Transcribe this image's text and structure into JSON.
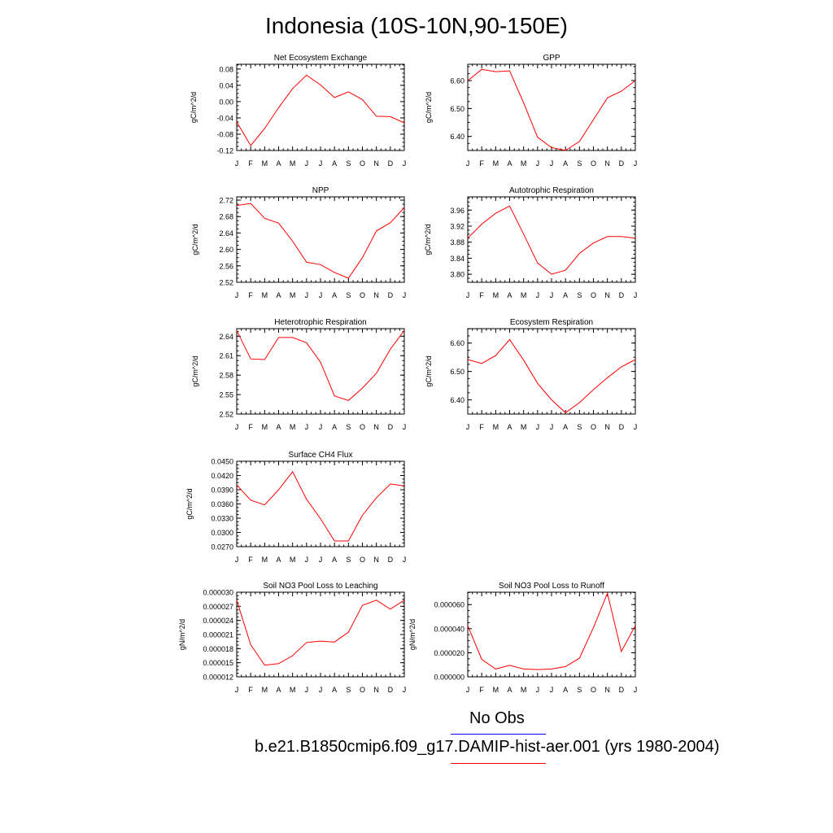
{
  "title": "Indonesia (10S-10N,90-150E)",
  "colors": {
    "model_line": "#ff0000",
    "obs_line": "#0000ff",
    "axis": "#000000"
  },
  "months": [
    "J",
    "F",
    "M",
    "A",
    "M",
    "J",
    "J",
    "A",
    "S",
    "O",
    "N",
    "D",
    "J"
  ],
  "legend": {
    "obs_label": "No Obs",
    "model_label": "b.e21.B1850cmip6.f09_g17.DAMIP-hist-aer.001 (yrs 1980-2004)"
  },
  "chart_data": [
    {
      "type": "line",
      "title": "Net Ecosystem Exchange",
      "ylabel": "gC/m^2/d",
      "ylim": [
        -0.12,
        0.0917
      ],
      "yticks": [
        -0.12,
        -0.08,
        -0.04,
        0.0,
        0.04,
        0.08
      ],
      "yticklabels": [
        "-0.12",
        "-0.08",
        "-0.04",
        "0.00",
        "0.04",
        "0.08"
      ],
      "values": [
        -0.05,
        -0.108,
        -0.066,
        -0.015,
        0.032,
        0.065,
        0.041,
        0.01,
        0.024,
        0.005,
        -0.036,
        -0.037,
        -0.052
      ]
    },
    {
      "type": "line",
      "title": "GPP",
      "ylabel": "gC/m^2/d",
      "ylim": [
        6.3496,
        6.6585
      ],
      "yticks": [
        6.4,
        6.5,
        6.6
      ],
      "yticklabels": [
        "6.40",
        "6.50",
        "6.60"
      ],
      "values": [
        6.6,
        6.64,
        6.632,
        6.635,
        6.52,
        6.397,
        6.36,
        6.35,
        6.382,
        6.46,
        6.538,
        6.562,
        6.6
      ]
    },
    {
      "type": "line",
      "title": "NPP",
      "ylabel": "gC/m^2/d",
      "ylim": [
        2.52,
        2.728
      ],
      "yticks": [
        2.52,
        2.56,
        2.6,
        2.64,
        2.68,
        2.72
      ],
      "yticklabels": [
        "2.52",
        "2.56",
        "2.60",
        "2.64",
        "2.68",
        "2.72"
      ],
      "values": [
        2.707,
        2.712,
        2.676,
        2.664,
        2.62,
        2.569,
        2.563,
        2.544,
        2.53,
        2.58,
        2.645,
        2.665,
        2.702
      ]
    },
    {
      "type": "line",
      "title": "Autotrophic Respiration",
      "ylabel": "gC/m^2/d",
      "ylim": [
        3.78,
        3.993
      ],
      "yticks": [
        3.8,
        3.84,
        3.88,
        3.92,
        3.96
      ],
      "yticklabels": [
        "3.80",
        "3.84",
        "3.88",
        "3.92",
        "3.96"
      ],
      "values": [
        3.89,
        3.925,
        3.952,
        3.97,
        3.9,
        3.828,
        3.8,
        3.81,
        3.852,
        3.878,
        3.894,
        3.894,
        3.89
      ]
    },
    {
      "type": "line",
      "title": "Heterotrophic Respiration",
      "ylabel": "gC/m^2/d",
      "ylim": [
        2.52,
        2.6517
      ],
      "yticks": [
        2.52,
        2.55,
        2.58,
        2.61,
        2.64
      ],
      "yticklabels": [
        "2.52",
        "2.55",
        "2.58",
        "2.61",
        "2.64"
      ],
      "values": [
        2.649,
        2.605,
        2.604,
        2.638,
        2.638,
        2.63,
        2.6,
        2.548,
        2.541,
        2.56,
        2.583,
        2.62,
        2.649
      ]
    },
    {
      "type": "line",
      "title": "Ecosystem Respiration",
      "ylabel": "gC/m^2/d",
      "ylim": [
        6.35,
        6.6507
      ],
      "yticks": [
        6.4,
        6.5,
        6.6
      ],
      "yticklabels": [
        "6.40",
        "6.50",
        "6.60"
      ],
      "values": [
        6.542,
        6.528,
        6.556,
        6.612,
        6.54,
        6.458,
        6.4,
        6.355,
        6.39,
        6.436,
        6.478,
        6.516,
        6.542
      ]
    },
    {
      "type": "line",
      "title": "Surface CH4 Flux",
      "ylabel": "gC/m^2/d",
      "ylim": [
        0.027,
        0.045
      ],
      "yticks": [
        0.027,
        0.03,
        0.033,
        0.036,
        0.039,
        0.042,
        0.045
      ],
      "yticklabels": [
        "0.0270",
        "0.0300",
        "0.0330",
        "0.0360",
        "0.0390",
        "0.0420",
        "0.0450"
      ],
      "values": [
        0.04,
        0.0368,
        0.0358,
        0.039,
        0.0428,
        0.037,
        0.0329,
        0.0282,
        0.0282,
        0.0336,
        0.0373,
        0.0402,
        0.0398
      ]
    },
    {
      "type": "line",
      "title": "Soil NO3 Pool Loss to Leaching",
      "ylabel": "gN/m^2/d",
      "ylim": [
        1.2e-05,
        3e-05
      ],
      "yticks": [
        1.2e-05,
        1.5e-05,
        1.8e-05,
        2.1e-05,
        2.4e-05,
        2.7e-05,
        3e-05
      ],
      "yticklabels": [
        "0.000012",
        "0.000015",
        "0.000018",
        "0.000021",
        "0.000024",
        "0.000027",
        "0.000030"
      ],
      "values": [
        2.83e-05,
        1.88e-05,
        1.45e-05,
        1.48e-05,
        1.65e-05,
        1.93e-05,
        1.96e-05,
        1.94e-05,
        2.15e-05,
        2.72e-05,
        2.83e-05,
        2.64e-05,
        2.83e-05
      ]
    },
    {
      "type": "line",
      "title": "Soil NO3 Pool Loss to Runoff",
      "ylabel": "gN/m^2/d",
      "ylim": [
        0.0,
        7.03e-05
      ],
      "yticks": [
        0.0,
        2e-05,
        4e-05,
        6e-05
      ],
      "yticklabels": [
        "0.000000",
        "0.000020",
        "0.000040",
        "0.000060"
      ],
      "values": [
        4.25e-05,
        1.45e-05,
        6.5e-06,
        9.5e-06,
        6.5e-06,
        6e-06,
        6.5e-06,
        8.5e-06,
        1.55e-05,
        4.08e-05,
        6.95e-05,
        2.1e-05,
        4.25e-05
      ]
    }
  ]
}
